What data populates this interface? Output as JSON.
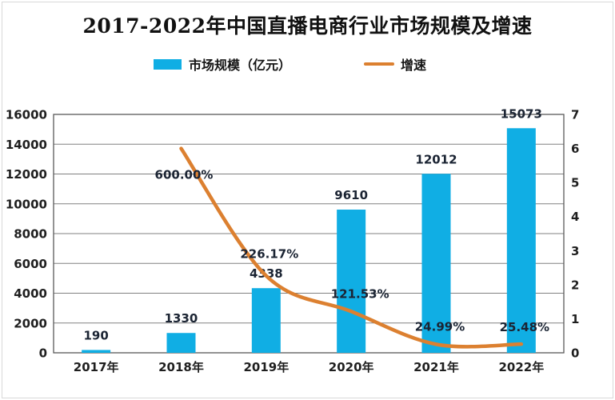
{
  "title": "2017-2022年中国直播电商行业市场规模及增速",
  "legend": [
    {
      "label": "市场规模（亿元）",
      "swatch": "bar"
    },
    {
      "label": "增速",
      "swatch": "line"
    }
  ],
  "colors": {
    "bar": "#10aee4",
    "line": "#dc8030",
    "grid": "#808080",
    "axis_border": "#595959",
    "frame_border": "#d9d9d9",
    "axis_text": "#1f1f1f",
    "value_text": "#1b2433",
    "background": "#ffffff"
  },
  "chart_data": {
    "type": "combo",
    "title": "2017-2022年中国直播电商行业市场规模及增速",
    "categories": [
      "2017年",
      "2018年",
      "2019年",
      "2020年",
      "2021年",
      "2022年"
    ],
    "series": [
      {
        "name": "市场规模（亿元）",
        "type": "bar",
        "axis": "left",
        "values": [
          190,
          1330,
          4338,
          9610,
          12012,
          15073
        ],
        "labels": [
          "190",
          "1330",
          "4338",
          "9610",
          "12012",
          "15073"
        ]
      },
      {
        "name": "增速",
        "type": "line",
        "axis": "right",
        "values_percent": [
          null,
          600.0,
          226.17,
          121.53,
          24.99,
          25.48
        ],
        "labels": [
          "",
          "600.00%",
          "226.17%",
          "121.53%",
          "24.99%",
          "25.48%"
        ]
      }
    ],
    "left_axis": {
      "min": 0,
      "max": 16000,
      "step": 2000,
      "ticks": [
        "0",
        "2000",
        "4000",
        "6000",
        "8000",
        "10000",
        "12000",
        "14000",
        "16000"
      ]
    },
    "right_axis": {
      "min": 0,
      "max": 7,
      "step": 1,
      "ticks": [
        "0",
        "1",
        "2",
        "3",
        "4",
        "5",
        "6",
        "7"
      ]
    },
    "grid": true,
    "legend_position": "top"
  }
}
